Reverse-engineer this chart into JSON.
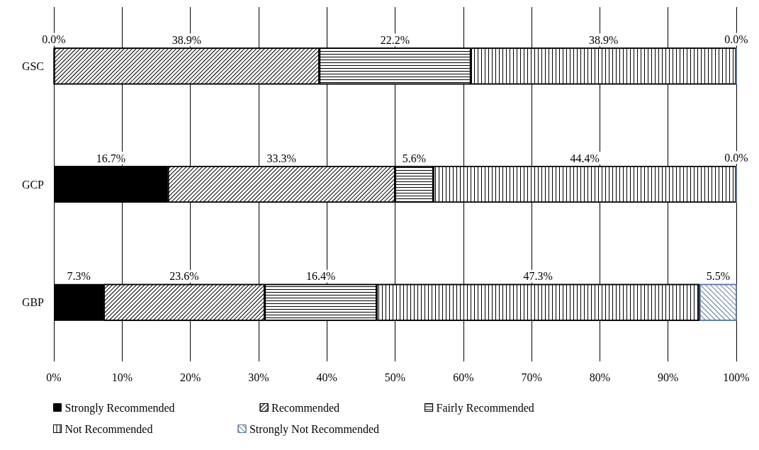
{
  "chart_data": {
    "type": "bar",
    "orientation": "horizontal",
    "stacked": true,
    "categories": [
      "GSC",
      "GCP",
      "GBP"
    ],
    "series": [
      {
        "name": "Strongly Recommended",
        "color": "#000000",
        "values": [
          0,
          16.7,
          7.3
        ],
        "value_labels": [
          "0.0%",
          "16.7%",
          "7.3%"
        ]
      },
      {
        "name": "Recommended",
        "color": "#000000",
        "values": [
          38.9,
          33.3,
          23.6
        ],
        "value_labels": [
          "38.9%",
          "33.3%",
          "23.6%"
        ]
      },
      {
        "name": "Fairly Recommended",
        "color": "#000000",
        "values": [
          22.2,
          5.6,
          16.4
        ],
        "value_labels": [
          "22.2%",
          "5.6%",
          "16.4%"
        ]
      },
      {
        "name": "Not Recommended",
        "color": "#000000",
        "values": [
          38.9,
          44.4,
          47.3
        ],
        "value_labels": [
          "38.9%",
          "44.4%",
          "47.3%"
        ]
      },
      {
        "name": "Strongly Not Recommended",
        "color": "#5b7aa8",
        "values": [
          0,
          0,
          5.5
        ],
        "value_labels": [
          "0.0%",
          "0.0%",
          "5.5%"
        ]
      }
    ],
    "xlim": [
      0,
      100
    ],
    "xticks": [
      {
        "value": 0,
        "label": "0%"
      },
      {
        "value": 10,
        "label": "10%"
      },
      {
        "value": 20,
        "label": "20%"
      },
      {
        "value": 30,
        "label": "30%"
      },
      {
        "value": 40,
        "label": "40%"
      },
      {
        "value": 50,
        "label": "50%"
      },
      {
        "value": 60,
        "label": "60%"
      },
      {
        "value": 70,
        "label": "70%"
      },
      {
        "value": 80,
        "label": "80%"
      },
      {
        "value": 90,
        "label": "90%"
      },
      {
        "value": 100,
        "label": "100%"
      }
    ],
    "grid": "x",
    "legend": "bottom"
  }
}
